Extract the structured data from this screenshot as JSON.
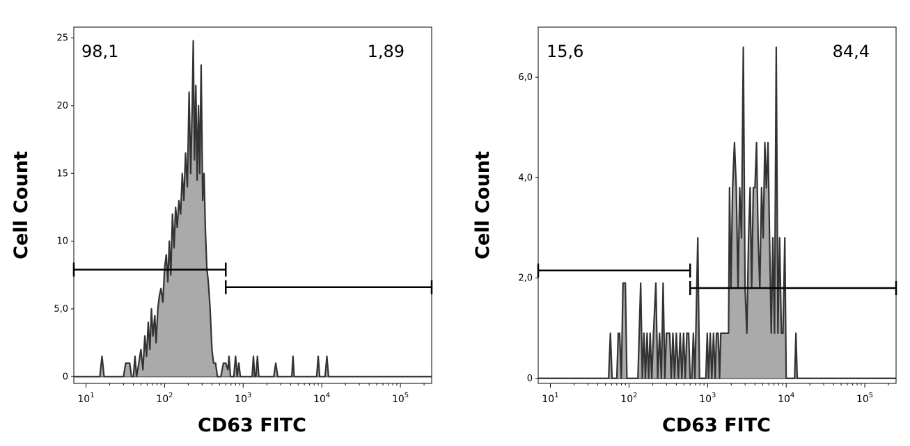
{
  "chart_data": [
    {
      "type": "histogram",
      "xlabel": "CD63 FITC",
      "ylabel": "Cell Count",
      "x_scale": "log",
      "xlim": [
        7,
        250000
      ],
      "ylim": [
        -0.5,
        25.8
      ],
      "y_ticks": [
        0,
        5,
        10,
        15,
        20,
        25
      ],
      "y_tick_labels": [
        "0",
        "5,0",
        "10",
        "15",
        "20",
        "25"
      ],
      "x_tick_labels": [
        {
          "base": "10",
          "exp": "1"
        },
        {
          "base": "10",
          "exp": "2"
        },
        {
          "base": "10",
          "exp": "3"
        },
        {
          "base": "10",
          "exp": "4"
        },
        {
          "base": "10",
          "exp": "5"
        }
      ],
      "gates": [
        {
          "label": "98,1",
          "range": [
            7,
            600
          ],
          "y": 7.9
        },
        {
          "label": "1,89",
          "range": [
            600,
            250000
          ],
          "y": 6.6
        }
      ],
      "series": [
        {
          "points": [
            [
              7,
              0
            ],
            [
              15,
              0
            ],
            [
              16,
              1.5
            ],
            [
              17,
              0
            ],
            [
              30,
              0
            ],
            [
              32,
              1
            ],
            [
              36,
              1
            ],
            [
              38,
              0
            ],
            [
              40,
              0
            ],
            [
              42,
              1.5
            ],
            [
              44,
              0
            ],
            [
              47,
              1
            ],
            [
              50,
              2
            ],
            [
              53,
              0.5
            ],
            [
              56,
              3
            ],
            [
              59,
              1.5
            ],
            [
              62,
              4
            ],
            [
              65,
              2
            ],
            [
              68,
              5
            ],
            [
              71,
              3
            ],
            [
              75,
              4.5
            ],
            [
              78,
              2.5
            ],
            [
              82,
              5
            ],
            [
              86,
              6
            ],
            [
              90,
              6.5
            ],
            [
              95,
              5.5
            ],
            [
              100,
              8
            ],
            [
              105,
              9
            ],
            [
              110,
              7
            ],
            [
              115,
              10
            ],
            [
              120,
              7.5
            ],
            [
              126,
              12
            ],
            [
              132,
              9.5
            ],
            [
              138,
              12.5
            ],
            [
              145,
              11
            ],
            [
              152,
              13
            ],
            [
              160,
              12
            ],
            [
              168,
              15
            ],
            [
              176,
              13
            ],
            [
              185,
              16.5
            ],
            [
              195,
              14
            ],
            [
              205,
              21
            ],
            [
              215,
              15
            ],
            [
              225,
              20
            ],
            [
              232,
              24.8
            ],
            [
              240,
              16
            ],
            [
              250,
              21.5
            ],
            [
              260,
              14.5
            ],
            [
              270,
              20
            ],
            [
              280,
              15
            ],
            [
              292,
              23
            ],
            [
              305,
              13
            ],
            [
              318,
              15
            ],
            [
              330,
              11
            ],
            [
              345,
              8
            ],
            [
              360,
              7
            ],
            [
              380,
              5
            ],
            [
              400,
              2
            ],
            [
              420,
              1
            ],
            [
              445,
              1
            ],
            [
              470,
              0
            ],
            [
              520,
              0
            ],
            [
              560,
              1
            ],
            [
              600,
              1
            ],
            [
              640,
              0.5
            ],
            [
              660,
              1.5
            ],
            [
              690,
              0
            ],
            [
              760,
              0
            ],
            [
              800,
              1.5
            ],
            [
              840,
              0
            ],
            [
              880,
              1
            ],
            [
              920,
              0
            ],
            [
              1300,
              0
            ],
            [
              1350,
              1.5
            ],
            [
              1400,
              0
            ],
            [
              1450,
              0
            ],
            [
              1520,
              1.5
            ],
            [
              1580,
              0
            ],
            [
              2450,
              0
            ],
            [
              2600,
              1
            ],
            [
              2750,
              0
            ],
            [
              4150,
              0
            ],
            [
              4300,
              1.5
            ],
            [
              4450,
              0
            ],
            [
              8600,
              0
            ],
            [
              9000,
              1.5
            ],
            [
              9400,
              0
            ],
            [
              11000,
              0
            ],
            [
              11600,
              1.5
            ],
            [
              12200,
              0
            ],
            [
              250000,
              0
            ]
          ]
        }
      ]
    },
    {
      "type": "histogram",
      "xlabel": "CD63 FITC",
      "ylabel": "Cell Count",
      "x_scale": "log",
      "xlim": [
        7,
        250000
      ],
      "ylim": [
        -0.1,
        7.0
      ],
      "y_ticks": [
        0,
        2,
        4,
        6
      ],
      "y_tick_labels": [
        "0",
        "2,0",
        "4,0",
        "6,0"
      ],
      "x_tick_labels": [
        {
          "base": "10",
          "exp": "1"
        },
        {
          "base": "10",
          "exp": "2"
        },
        {
          "base": "10",
          "exp": "3"
        },
        {
          "base": "10",
          "exp": "4"
        },
        {
          "base": "10",
          "exp": "5"
        }
      ],
      "gates": [
        {
          "label": "15,6",
          "range": [
            7,
            600
          ],
          "y": 2.15
        },
        {
          "label": "84,4",
          "range": [
            600,
            250000
          ],
          "y": 1.8
        }
      ],
      "series": [
        {
          "points": [
            [
              7,
              0
            ],
            [
              55,
              0
            ],
            [
              58,
              0.9
            ],
            [
              61,
              0
            ],
            [
              70,
              0
            ],
            [
              73,
              0.9
            ],
            [
              76,
              0.9
            ],
            [
              80,
              0
            ],
            [
              84,
              1.9
            ],
            [
              90,
              1.9
            ],
            [
              94,
              0
            ],
            [
              130,
              0
            ],
            [
              135,
              0.9
            ],
            [
              141,
              1.9
            ],
            [
              148,
              0
            ],
            [
              155,
              0.9
            ],
            [
              162,
              0
            ],
            [
              170,
              0.9
            ],
            [
              178,
              0
            ],
            [
              186,
              0.9
            ],
            [
              195,
              0
            ],
            [
              205,
              0.9
            ],
            [
              220,
              1.9
            ],
            [
              232,
              0
            ],
            [
              245,
              0.9
            ],
            [
              258,
              0
            ],
            [
              272,
              1.9
            ],
            [
              286,
              0
            ],
            [
              300,
              0.9
            ],
            [
              330,
              0.9
            ],
            [
              345,
              0
            ],
            [
              362,
              0.9
            ],
            [
              380,
              0
            ],
            [
              400,
              0.9
            ],
            [
              425,
              0
            ],
            [
              448,
              0.9
            ],
            [
              470,
              0
            ],
            [
              495,
              0.9
            ],
            [
              520,
              0
            ],
            [
              545,
              0.9
            ],
            [
              575,
              0.9
            ],
            [
              600,
              0
            ],
            [
              630,
              0
            ],
            [
              660,
              0.9
            ],
            [
              690,
              0
            ],
            [
              750,
              2.8
            ],
            [
              790,
              0
            ],
            [
              950,
              0
            ],
            [
              990,
              0.9
            ],
            [
              1030,
              0
            ],
            [
              1080,
              0.9
            ],
            [
              1130,
              0
            ],
            [
              1190,
              0.9
            ],
            [
              1250,
              0
            ],
            [
              1300,
              0.9
            ],
            [
              1360,
              0.9
            ],
            [
              1420,
              0
            ],
            [
              1470,
              0.9
            ],
            [
              1550,
              0.9
            ],
            [
              1620,
              0.9
            ],
            [
              1850,
              0.9
            ],
            [
              1900,
              3.8
            ],
            [
              1980,
              1.8
            ],
            [
              2080,
              3.8
            ],
            [
              2200,
              4.7
            ],
            [
              2320,
              3.8
            ],
            [
              2440,
              1.8
            ],
            [
              2560,
              3.8
            ],
            [
              2700,
              2.8
            ],
            [
              2850,
              6.6
            ],
            [
              3000,
              1.8
            ],
            [
              3160,
              0.9
            ],
            [
              3320,
              2.8
            ],
            [
              3480,
              3.8
            ],
            [
              3640,
              1.8
            ],
            [
              3820,
              3.8
            ],
            [
              4000,
              3.8
            ],
            [
              4200,
              4.7
            ],
            [
              4400,
              2.8
            ],
            [
              4620,
              1.8
            ],
            [
              4860,
              3.8
            ],
            [
              5100,
              2.8
            ],
            [
              5350,
              4.7
            ],
            [
              5600,
              3.8
            ],
            [
              5870,
              4.7
            ],
            [
              6150,
              2.8
            ],
            [
              6450,
              0.9
            ],
            [
              6760,
              2.8
            ],
            [
              7100,
              0.9
            ],
            [
              7480,
              6.6
            ],
            [
              7850,
              0.9
            ],
            [
              8250,
              2.8
            ],
            [
              8700,
              0.9
            ],
            [
              9100,
              0.9
            ],
            [
              9600,
              2.8
            ],
            [
              10000,
              0
            ],
            [
              12800,
              0
            ],
            [
              13300,
              0.9
            ],
            [
              13800,
              0
            ],
            [
              250000,
              0
            ]
          ]
        }
      ]
    }
  ]
}
